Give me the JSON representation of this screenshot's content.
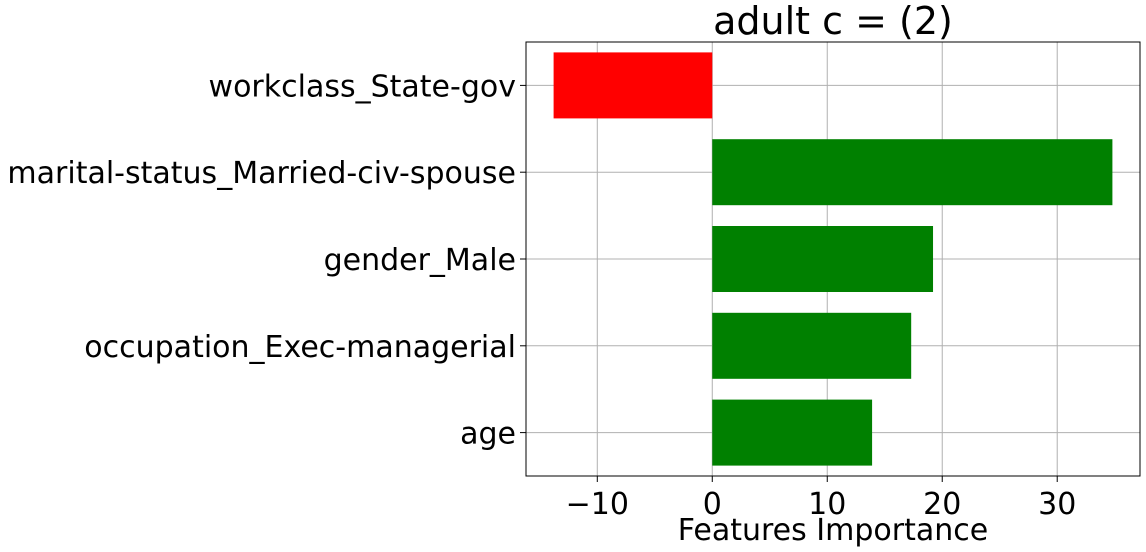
{
  "chart_data": {
    "type": "bar",
    "orientation": "horizontal",
    "title": "adult c = (2)",
    "xlabel": "Features Importance",
    "ylabel": "",
    "categories": [
      "workclass_State-gov",
      "marital-status_Married-civ-spouse",
      "gender_Male",
      "occupation_Exec-managerial",
      "age"
    ],
    "values": [
      -13.8,
      34.8,
      19.2,
      17.3,
      13.9
    ],
    "xlim": [
      -16.2,
      37.2
    ],
    "xticks": [
      -10,
      0,
      10,
      20,
      30
    ],
    "xtick_labels": [
      "−10",
      "0",
      "10",
      "20",
      "30"
    ],
    "grid": true,
    "colors": {
      "positive": "#008000",
      "negative": "#ff0000"
    }
  }
}
